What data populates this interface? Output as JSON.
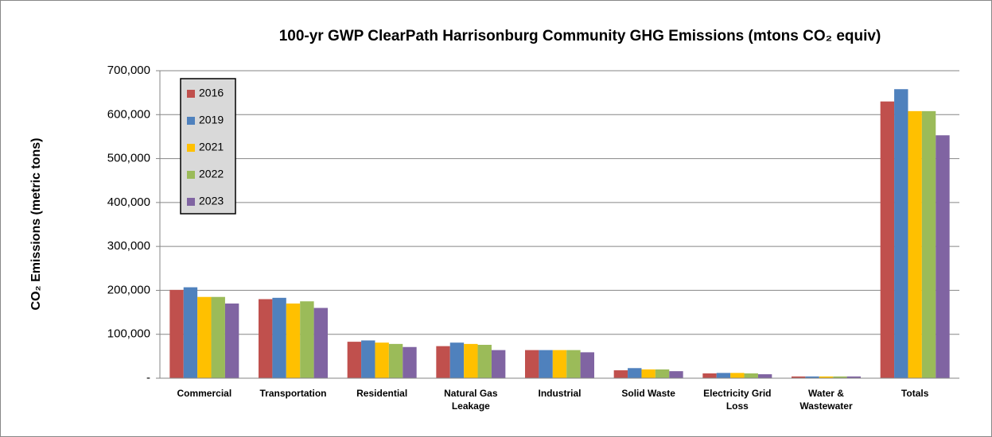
{
  "chart_data": {
    "type": "bar",
    "title": "100-yr GWP ClearPath Harrisonburg Community GHG Emissions (mtons CO₂ equiv)",
    "y_label": "CO₂ Emissions  (metric tons)",
    "categories": [
      "Commercial",
      "Transportation",
      "Residential",
      "Natural Gas Leakage",
      "Industrial",
      "Solid Waste",
      "Electricity Grid Loss",
      "Water & Wastewater",
      "Totals"
    ],
    "series": [
      {
        "name": "2016",
        "color": "#c0504d",
        "values": [
          201000,
          180000,
          83000,
          73000,
          64000,
          18000,
          11000,
          4000,
          630000
        ]
      },
      {
        "name": "2019",
        "color": "#4f81bd",
        "values": [
          207000,
          183000,
          86000,
          81000,
          64000,
          23000,
          12000,
          4000,
          658000
        ]
      },
      {
        "name": "2021",
        "color": "#ffc000",
        "values": [
          185000,
          170000,
          81000,
          78000,
          64000,
          20000,
          12000,
          4000,
          608000
        ]
      },
      {
        "name": "2022",
        "color": "#9bbb59",
        "values": [
          185000,
          175000,
          78000,
          76000,
          64000,
          20000,
          11000,
          4000,
          608000
        ]
      },
      {
        "name": "2023",
        "color": "#8064a2",
        "values": [
          170000,
          160000,
          71000,
          64000,
          59000,
          16000,
          9000,
          4000,
          553000
        ]
      }
    ],
    "ylim": [
      0,
      700000
    ],
    "yticks": [
      {
        "value": 0,
        "label": "-"
      },
      {
        "value": 100000,
        "label": "100,000"
      },
      {
        "value": 200000,
        "label": "200,000"
      },
      {
        "value": 300000,
        "label": "300,000"
      },
      {
        "value": 400000,
        "label": "400,000"
      },
      {
        "value": 500000,
        "label": "500,000"
      },
      {
        "value": 600000,
        "label": "600,000"
      },
      {
        "value": 700000,
        "label": "700,000"
      }
    ],
    "grid": true,
    "legend": "top-left"
  }
}
